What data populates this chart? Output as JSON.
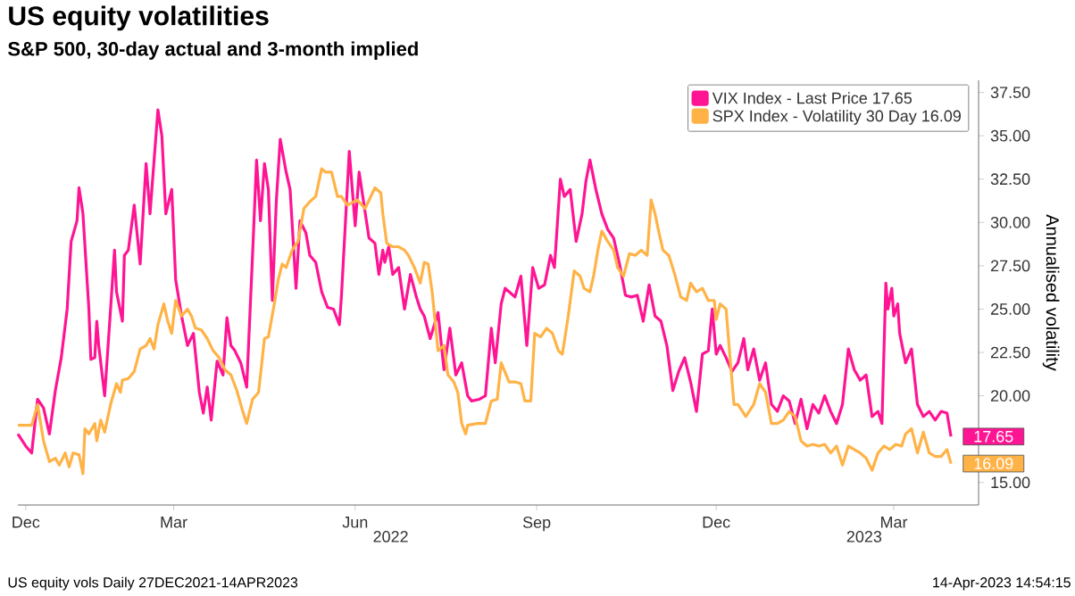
{
  "chart_data": {
    "type": "line",
    "title": "US equity volatilities",
    "subtitle": "S&P 500, 30-day actual and 3-month implied",
    "ylabel": "Annualised volatility",
    "xlim": [
      "2021-12-27",
      "2023-04-28"
    ],
    "xticks": [
      {
        "value": "2021-12-31",
        "label": "Dec"
      },
      {
        "value": "2022-03-16",
        "label": "Mar"
      },
      {
        "value": "2022-06-16",
        "label": "Jun"
      },
      {
        "value": "2022-09-16",
        "label": "Sep"
      },
      {
        "value": "2022-12-16",
        "label": "Dec"
      },
      {
        "value": "2023-03-16",
        "label": "Mar"
      }
    ],
    "x2lim": [
      "2021-12-27",
      "2023-04-28"
    ],
    "x2ticks": [
      {
        "value": "2022-07-04",
        "label": "2022"
      },
      {
        "value": "2023-03-01",
        "label": "2023"
      }
    ],
    "ylim": [
      13.7,
      38.2
    ],
    "yticks": [
      {
        "value": 15,
        "label": "15.00"
      },
      {
        "value": 17.5,
        "label": null
      },
      {
        "value": 20,
        "label": "20.00"
      },
      {
        "value": 22.5,
        "label": "22.50"
      },
      {
        "value": 25,
        "label": "25.00"
      },
      {
        "value": 27.5,
        "label": "27.50"
      },
      {
        "value": 30,
        "label": "30.00"
      },
      {
        "value": 32.5,
        "label": "32.50"
      },
      {
        "value": 35,
        "label": "35.00"
      },
      {
        "value": 37.5,
        "label": "37.50"
      }
    ],
    "legend": "top right",
    "series": [
      {
        "name": "VIX Index - Last Price 17.65",
        "color": "#ff1493",
        "x": [
          "2021-12-27",
          "2021-12-31",
          "2022-01-03",
          "2022-01-06",
          "2022-01-09",
          "2022-01-12",
          "2022-01-15",
          "2022-01-18",
          "2022-01-21",
          "2022-01-23",
          "2022-01-26",
          "2022-01-27",
          "2022-01-29",
          "2022-02-01",
          "2022-02-02",
          "2022-02-04",
          "2022-02-05",
          "2022-02-06",
          "2022-02-09",
          "2022-02-12",
          "2022-02-14",
          "2022-02-15",
          "2022-02-18",
          "2022-02-19",
          "2022-02-21",
          "2022-02-24",
          "2022-02-27",
          "2022-03-02",
          "2022-03-04",
          "2022-03-08",
          "2022-03-10",
          "2022-03-12",
          "2022-03-15",
          "2022-03-17",
          "2022-03-20",
          "2022-03-23",
          "2022-03-26",
          "2022-03-29",
          "2022-03-31",
          "2022-04-02",
          "2022-04-04",
          "2022-04-07",
          "2022-04-10",
          "2022-04-12",
          "2022-04-14",
          "2022-04-16",
          "2022-04-19",
          "2022-04-22",
          "2022-04-25",
          "2022-04-27",
          "2022-04-29",
          "2022-05-01",
          "2022-05-03",
          "2022-05-05",
          "2022-05-07",
          "2022-05-09",
          "2022-05-12",
          "2022-05-14",
          "2022-05-17",
          "2022-05-19",
          "2022-05-22",
          "2022-05-24",
          "2022-05-27",
          "2022-05-30",
          "2022-06-02",
          "2022-06-05",
          "2022-06-08",
          "2022-06-09",
          "2022-06-13",
          "2022-06-16",
          "2022-06-18",
          "2022-06-23",
          "2022-06-26",
          "2022-06-28",
          "2022-06-30",
          "2022-07-01",
          "2022-07-03",
          "2022-07-05",
          "2022-07-08",
          "2022-07-11",
          "2022-07-14",
          "2022-07-17",
          "2022-07-19",
          "2022-07-21",
          "2022-07-24",
          "2022-07-28",
          "2022-07-31",
          "2022-08-03",
          "2022-08-06",
          "2022-08-09",
          "2022-08-12",
          "2022-08-14",
          "2022-08-18",
          "2022-08-21",
          "2022-08-24",
          "2022-08-26",
          "2022-08-29",
          "2022-08-31",
          "2022-09-02",
          "2022-09-05",
          "2022-09-08",
          "2022-09-11",
          "2022-09-14",
          "2022-09-17",
          "2022-09-20",
          "2022-09-23",
          "2022-09-25",
          "2022-09-28",
          "2022-09-30",
          "2022-10-03",
          "2022-10-06",
          "2022-10-09",
          "2022-10-11",
          "2022-10-13",
          "2022-10-16",
          "2022-10-19",
          "2022-10-22",
          "2022-10-25",
          "2022-10-28",
          "2022-10-31",
          "2022-11-03",
          "2022-11-06",
          "2022-11-09",
          "2022-11-12",
          "2022-11-15",
          "2022-11-18",
          "2022-11-21",
          "2022-11-24",
          "2022-11-27",
          "2022-11-30",
          "2022-12-03",
          "2022-12-06",
          "2022-12-09",
          "2022-12-12",
          "2022-12-14",
          "2022-12-16",
          "2022-12-18",
          "2022-12-21",
          "2022-12-24",
          "2022-12-27",
          "2022-12-30",
          "2023-01-01",
          "2023-01-04",
          "2023-01-07",
          "2023-01-10",
          "2023-01-13",
          "2023-01-16",
          "2023-01-19",
          "2023-01-22",
          "2023-01-25",
          "2023-01-28",
          "2023-01-31",
          "2023-02-03",
          "2023-02-06",
          "2023-02-09",
          "2023-02-12",
          "2023-02-15",
          "2023-02-18",
          "2023-02-21",
          "2023-02-24",
          "2023-02-27",
          "2023-03-02",
          "2023-03-05",
          "2023-03-08",
          "2023-03-10",
          "2023-03-12",
          "2023-03-13",
          "2023-03-15",
          "2023-03-16",
          "2023-03-18",
          "2023-03-19",
          "2023-03-22",
          "2023-03-25",
          "2023-03-28",
          "2023-03-31",
          "2023-04-03",
          "2023-04-06",
          "2023-04-09",
          "2023-04-12",
          "2023-04-14"
        ],
        "values": [
          17.8,
          17.1,
          16.7,
          19.8,
          19.3,
          17.8,
          20.3,
          22.2,
          25.0,
          28.9,
          30.1,
          32.0,
          30.5,
          25.0,
          22.1,
          22.2,
          24.3,
          22.9,
          20.0,
          25.0,
          28.4,
          26.0,
          24.3,
          28.1,
          28.4,
          31.0,
          27.6,
          33.4,
          30.5,
          36.5,
          35.0,
          30.5,
          31.9,
          26.7,
          24.6,
          22.9,
          23.6,
          20.2,
          19.0,
          20.5,
          18.6,
          22.0,
          21.2,
          24.5,
          22.9,
          22.6,
          21.9,
          20.5,
          28.2,
          33.6,
          30.1,
          33.4,
          31.9,
          25.5,
          31.2,
          34.8,
          32.9,
          31.9,
          26.2,
          30.1,
          29.4,
          28.1,
          27.7,
          26.0,
          25.1,
          25.0,
          24.1,
          25.7,
          34.1,
          29.8,
          32.9,
          29.1,
          28.8,
          27.0,
          28.4,
          27.7,
          28.6,
          27.0,
          27.4,
          25.0,
          27.0,
          25.7,
          25.0,
          24.6,
          23.3,
          24.8,
          21.5,
          23.9,
          21.2,
          21.9,
          20.0,
          19.7,
          19.8,
          20.0,
          23.9,
          21.9,
          25.3,
          26.2,
          26.0,
          25.7,
          26.9,
          22.9,
          27.4,
          26.2,
          26.4,
          28.1,
          27.4,
          32.5,
          31.5,
          31.9,
          28.9,
          30.5,
          32.4,
          33.6,
          31.9,
          30.5,
          29.6,
          29.1,
          27.6,
          25.8,
          25.7,
          25.8,
          24.3,
          26.4,
          24.6,
          24.3,
          22.9,
          20.3,
          21.4,
          22.2,
          20.8,
          19.1,
          22.4,
          22.6,
          25.0,
          22.4,
          22.9,
          22.2,
          21.4,
          21.9,
          23.3,
          21.5,
          22.7,
          20.9,
          21.9,
          19.5,
          19.1,
          20.0,
          19.7,
          18.4,
          19.8,
          18.1,
          19.5,
          19.0,
          20.0,
          19.1,
          18.4,
          19.5,
          22.7,
          21.5,
          20.9,
          21.2,
          18.8,
          19.1,
          18.4,
          26.5,
          25.0,
          26.2,
          24.6,
          25.3,
          23.6,
          21.9,
          22.7,
          19.5,
          18.8,
          19.1,
          18.6,
          19.1,
          19.0,
          17.65
        ]
      },
      {
        "name": "SPX Index - Volatility 30 Day 16.09",
        "color": "#ffb347",
        "x": [
          "2021-12-27",
          "2022-01-03",
          "2022-01-06",
          "2022-01-09",
          "2022-01-12",
          "2022-01-15",
          "2022-01-17",
          "2022-01-20",
          "2022-01-22",
          "2022-01-24",
          "2022-01-27",
          "2022-01-29",
          "2022-01-30",
          "2022-02-01",
          "2022-02-04",
          "2022-02-05",
          "2022-02-07",
          "2022-02-09",
          "2022-02-12",
          "2022-02-15",
          "2022-02-17",
          "2022-02-18",
          "2022-02-21",
          "2022-02-24",
          "2022-02-27",
          "2022-03-02",
          "2022-03-04",
          "2022-03-06",
          "2022-03-08",
          "2022-03-11",
          "2022-03-13",
          "2022-03-15",
          "2022-03-17",
          "2022-03-20",
          "2022-03-23",
          "2022-03-25",
          "2022-03-27",
          "2022-03-30",
          "2022-04-02",
          "2022-04-05",
          "2022-04-08",
          "2022-04-11",
          "2022-04-14",
          "2022-04-17",
          "2022-04-20",
          "2022-04-22",
          "2022-04-25",
          "2022-04-28",
          "2022-04-29",
          "2022-05-01",
          "2022-05-03",
          "2022-05-06",
          "2022-05-08",
          "2022-05-10",
          "2022-05-12",
          "2022-05-15",
          "2022-05-18",
          "2022-05-21",
          "2022-05-24",
          "2022-05-27",
          "2022-05-30",
          "2022-06-01",
          "2022-06-04",
          "2022-06-07",
          "2022-06-09",
          "2022-06-12",
          "2022-06-17",
          "2022-06-21",
          "2022-06-26",
          "2022-06-29",
          "2022-06-30",
          "2022-07-02",
          "2022-07-05",
          "2022-07-08",
          "2022-07-11",
          "2022-07-13",
          "2022-07-16",
          "2022-07-19",
          "2022-07-21",
          "2022-07-23",
          "2022-07-25",
          "2022-07-28",
          "2022-07-31",
          "2022-08-02",
          "2022-08-05",
          "2022-08-07",
          "2022-08-09",
          "2022-08-11",
          "2022-08-12",
          "2022-08-17",
          "2022-08-21",
          "2022-08-24",
          "2022-08-27",
          "2022-08-29",
          "2022-09-02",
          "2022-09-05",
          "2022-09-08",
          "2022-09-10",
          "2022-09-13",
          "2022-09-15",
          "2022-09-18",
          "2022-09-21",
          "2022-09-24",
          "2022-09-27",
          "2022-09-29",
          "2022-10-02",
          "2022-10-05",
          "2022-10-08",
          "2022-10-10",
          "2022-10-13",
          "2022-10-15",
          "2022-10-17",
          "2022-10-19",
          "2022-10-22",
          "2022-10-25",
          "2022-10-27",
          "2022-10-30",
          "2022-11-02",
          "2022-11-05",
          "2022-11-08",
          "2022-11-11",
          "2022-11-13",
          "2022-11-15",
          "2022-11-17",
          "2022-11-19",
          "2022-11-22",
          "2022-11-25",
          "2022-11-28",
          "2022-12-01",
          "2022-12-03",
          "2022-12-06",
          "2022-12-09",
          "2022-12-12",
          "2022-12-15",
          "2022-12-16",
          "2022-12-18",
          "2022-12-21",
          "2022-12-23",
          "2022-12-25",
          "2022-12-27",
          "2022-12-31",
          "2023-01-04",
          "2023-01-07",
          "2023-01-10",
          "2023-01-13",
          "2023-01-16",
          "2023-01-19",
          "2023-01-22",
          "2023-01-25",
          "2023-01-28",
          "2023-01-31",
          "2023-02-03",
          "2023-02-06",
          "2023-02-09",
          "2023-02-12",
          "2023-02-15",
          "2023-02-18",
          "2023-02-21",
          "2023-02-24",
          "2023-02-27",
          "2023-03-02",
          "2023-03-05",
          "2023-03-08",
          "2023-03-11",
          "2023-03-14",
          "2023-03-17",
          "2023-03-20",
          "2023-03-22",
          "2023-03-25",
          "2023-03-28",
          "2023-03-31",
          "2023-04-03",
          "2023-04-06",
          "2023-04-09",
          "2023-04-12",
          "2023-04-14"
        ],
        "values": [
          18.3,
          18.3,
          19.5,
          17.4,
          16.2,
          16.4,
          16.0,
          16.7,
          15.9,
          16.7,
          16.6,
          15.5,
          18.1,
          17.8,
          18.4,
          17.4,
          18.6,
          17.9,
          19.5,
          20.7,
          20.2,
          20.9,
          21.0,
          21.4,
          22.7,
          22.9,
          23.3,
          22.7,
          24.1,
          25.3,
          24.3,
          23.6,
          25.5,
          24.6,
          25.0,
          24.6,
          23.9,
          23.8,
          23.3,
          22.6,
          22.2,
          21.5,
          21.2,
          20.3,
          19.1,
          18.4,
          19.8,
          20.2,
          21.2,
          23.3,
          23.4,
          25.3,
          26.7,
          27.6,
          27.4,
          28.4,
          28.9,
          30.8,
          31.2,
          31.5,
          33.1,
          32.9,
          32.9,
          31.5,
          31.5,
          31.0,
          31.3,
          30.8,
          32.0,
          31.7,
          30.5,
          28.8,
          28.6,
          28.6,
          28.4,
          28.1,
          27.4,
          26.5,
          27.7,
          27.6,
          26.0,
          22.6,
          22.9,
          21.2,
          20.8,
          20.2,
          18.4,
          17.8,
          18.3,
          18.4,
          18.4,
          19.7,
          19.8,
          21.9,
          20.8,
          20.8,
          20.7,
          19.7,
          19.7,
          23.6,
          23.4,
          23.9,
          23.6,
          22.6,
          22.4,
          24.6,
          27.2,
          26.9,
          26.2,
          26.0,
          27.0,
          28.4,
          29.5,
          28.9,
          28.4,
          27.4,
          26.9,
          28.2,
          28.1,
          28.4,
          28.1,
          31.3,
          30.5,
          29.4,
          28.4,
          28.1,
          27.0,
          25.7,
          25.5,
          26.5,
          26.0,
          26.2,
          25.5,
          25.5,
          24.4,
          25.3,
          25.0,
          22.2,
          19.5,
          19.5,
          18.8,
          19.5,
          20.7,
          20.2,
          18.4,
          18.4,
          18.6,
          19.1,
          18.8,
          17.4,
          17.1,
          17.2,
          17.1,
          17.2,
          16.7,
          17.1,
          16.0,
          17.1,
          16.9,
          16.7,
          16.4,
          15.7,
          16.7,
          17.1,
          16.9,
          17.2,
          17.1,
          17.8,
          18.1,
          16.7,
          17.9,
          16.7,
          16.5,
          16.5,
          16.9,
          16.09
        ]
      }
    ],
    "annotations": [
      {
        "text": "17.65",
        "x": "2023-04-14",
        "y": 17.65
      },
      {
        "text": "16.09",
        "x": "2023-04-14",
        "y": 16.09
      },
      "US equity vols  Daily 27DEC2021-14APR2023",
      "14-Apr-2023 14:54:15"
    ]
  }
}
